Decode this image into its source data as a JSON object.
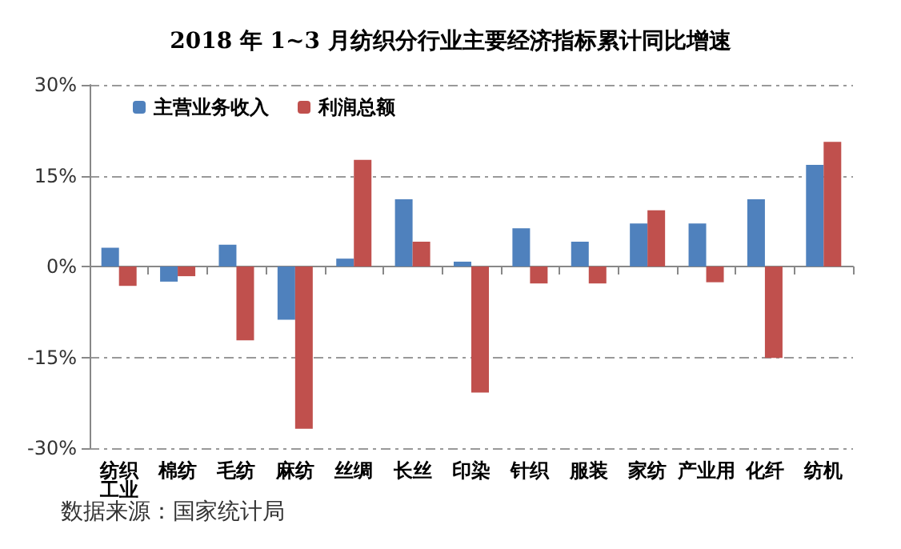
{
  "chart_data": {
    "type": "bar",
    "title": "2018 年 1~3 月纺织分行业主要经济指标累计同比增速",
    "categories": [
      "纺织工业",
      "棉纺",
      "毛纺",
      "麻纺",
      "丝绸",
      "长丝",
      "印染",
      "针织",
      "服装",
      "家纺",
      "产业用",
      "化纤",
      "纺机"
    ],
    "series": [
      {
        "name": "主营业务收入",
        "color": "#4f81bd",
        "values": [
          3.1,
          -2.5,
          3.6,
          -8.8,
          1.3,
          11.1,
          0.8,
          6.3,
          4.1,
          7.1,
          7.1,
          11.1,
          16.8
        ]
      },
      {
        "name": "利润总额",
        "color": "#c0504d",
        "values": [
          -3.2,
          -1.6,
          -12.2,
          -26.8,
          17.6,
          4.1,
          -20.8,
          -2.8,
          -2.8,
          9.3,
          -2.6,
          -15.1,
          20.6
        ]
      }
    ],
    "ylim": [
      -30,
      30
    ],
    "yticks": [
      {
        "value": -30,
        "label": "-30%"
      },
      {
        "value": -15,
        "label": "-15%"
      },
      {
        "value": 0,
        "label": "0%"
      },
      {
        "value": 15,
        "label": "15%"
      },
      {
        "value": 30,
        "label": "30%"
      }
    ],
    "grid": "y",
    "legend": "top left",
    "annotations": [
      "数据来源：国家统计局"
    ]
  }
}
